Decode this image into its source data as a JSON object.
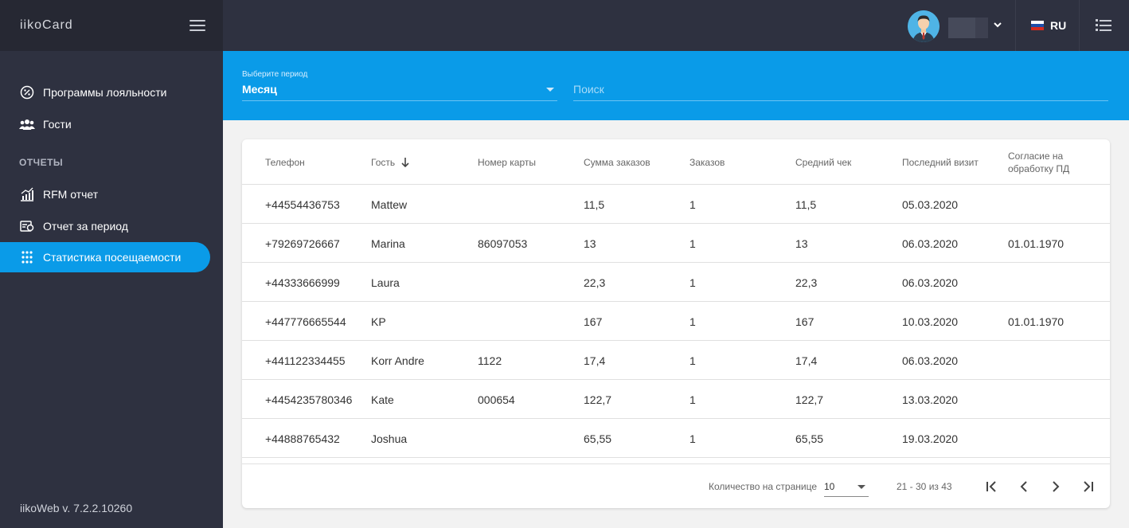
{
  "brand": "iikoCard",
  "version": "iikoWeb v. 7.2.2.10260",
  "nav": {
    "items": [
      {
        "label": "Программы лояльности",
        "icon": "percent-badge-icon"
      },
      {
        "label": "Гости",
        "icon": "users-icon"
      }
    ],
    "section_label": "ОТЧЕТЫ",
    "reports": [
      {
        "label": "RFM отчет",
        "icon": "chart-icon"
      },
      {
        "label": "Отчет за период",
        "icon": "report-icon"
      },
      {
        "label": "Статистика посещаемости",
        "icon": "attendance-icon",
        "active": true
      }
    ]
  },
  "topbar": {
    "language": "RU"
  },
  "filters": {
    "period_label": "Выберите период",
    "period_value": "Месяц",
    "search_placeholder": "Поиск"
  },
  "table": {
    "columns": [
      "Телефон",
      "Гость",
      "Номер карты",
      "Сумма заказов",
      "Заказов",
      "Средний чек",
      "Последний визит",
      "Согласие на обработку ПД"
    ],
    "sorted_column": "Гость",
    "rows": [
      [
        "+44554436753",
        "Mattew",
        "",
        "11,5",
        "1",
        "11,5",
        "05.03.2020",
        ""
      ],
      [
        "+79269726667",
        "Marina",
        "86097053",
        "13",
        "1",
        "13",
        "06.03.2020",
        "01.01.1970"
      ],
      [
        "+44333666999",
        "Laura",
        "",
        "22,3",
        "1",
        "22,3",
        "06.03.2020",
        ""
      ],
      [
        "+447776665544",
        "KP",
        "",
        "167",
        "1",
        "167",
        "10.03.2020",
        "01.01.1970"
      ],
      [
        "+441122334455",
        "Korr Andre",
        "1122",
        "17,4",
        "1",
        "17,4",
        "06.03.2020",
        ""
      ],
      [
        "+4454235780346",
        "Kate",
        "000654",
        "122,7",
        "1",
        "122,7",
        "13.03.2020",
        ""
      ],
      [
        "+44888765432",
        "Joshua",
        "",
        "65,55",
        "1",
        "65,55",
        "19.03.2020",
        ""
      ]
    ]
  },
  "pagination": {
    "per_page_label": "Количество на странице",
    "per_page_value": "10",
    "range": "21 - 30 из 43"
  },
  "colors": {
    "accent": "#0a9be8",
    "sidebar": "#2e3140"
  }
}
